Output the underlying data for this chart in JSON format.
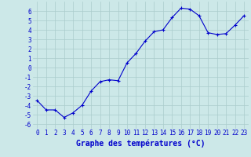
{
  "x": [
    0,
    1,
    2,
    3,
    4,
    5,
    6,
    7,
    8,
    9,
    10,
    11,
    12,
    13,
    14,
    15,
    16,
    17,
    18,
    19,
    20,
    21,
    22,
    23
  ],
  "y": [
    -3.5,
    -4.5,
    -4.5,
    -5.3,
    -4.8,
    -4.0,
    -2.5,
    -1.5,
    -1.3,
    -1.4,
    0.5,
    1.5,
    2.8,
    3.8,
    4.0,
    5.3,
    6.3,
    6.2,
    5.5,
    3.7,
    3.5,
    3.6,
    4.5,
    5.5
  ],
  "line_color": "#0000cc",
  "marker": "+",
  "markersize": 3,
  "linewidth": 0.8,
  "xlabel": "Graphe des températures (°C)",
  "xlim": [
    -0.5,
    23.5
  ],
  "ylim": [
    -6.5,
    7.0
  ],
  "yticks": [
    -6,
    -5,
    -4,
    -3,
    -2,
    -1,
    0,
    1,
    2,
    3,
    4,
    5,
    6
  ],
  "xticks": [
    0,
    1,
    2,
    3,
    4,
    5,
    6,
    7,
    8,
    9,
    10,
    11,
    12,
    13,
    14,
    15,
    16,
    17,
    18,
    19,
    20,
    21,
    22,
    23
  ],
  "background_color": "#cce8e8",
  "grid_color": "#aacccc",
  "tick_fontsize": 5.5,
  "xlabel_fontsize": 7,
  "text_color": "#0000cc"
}
